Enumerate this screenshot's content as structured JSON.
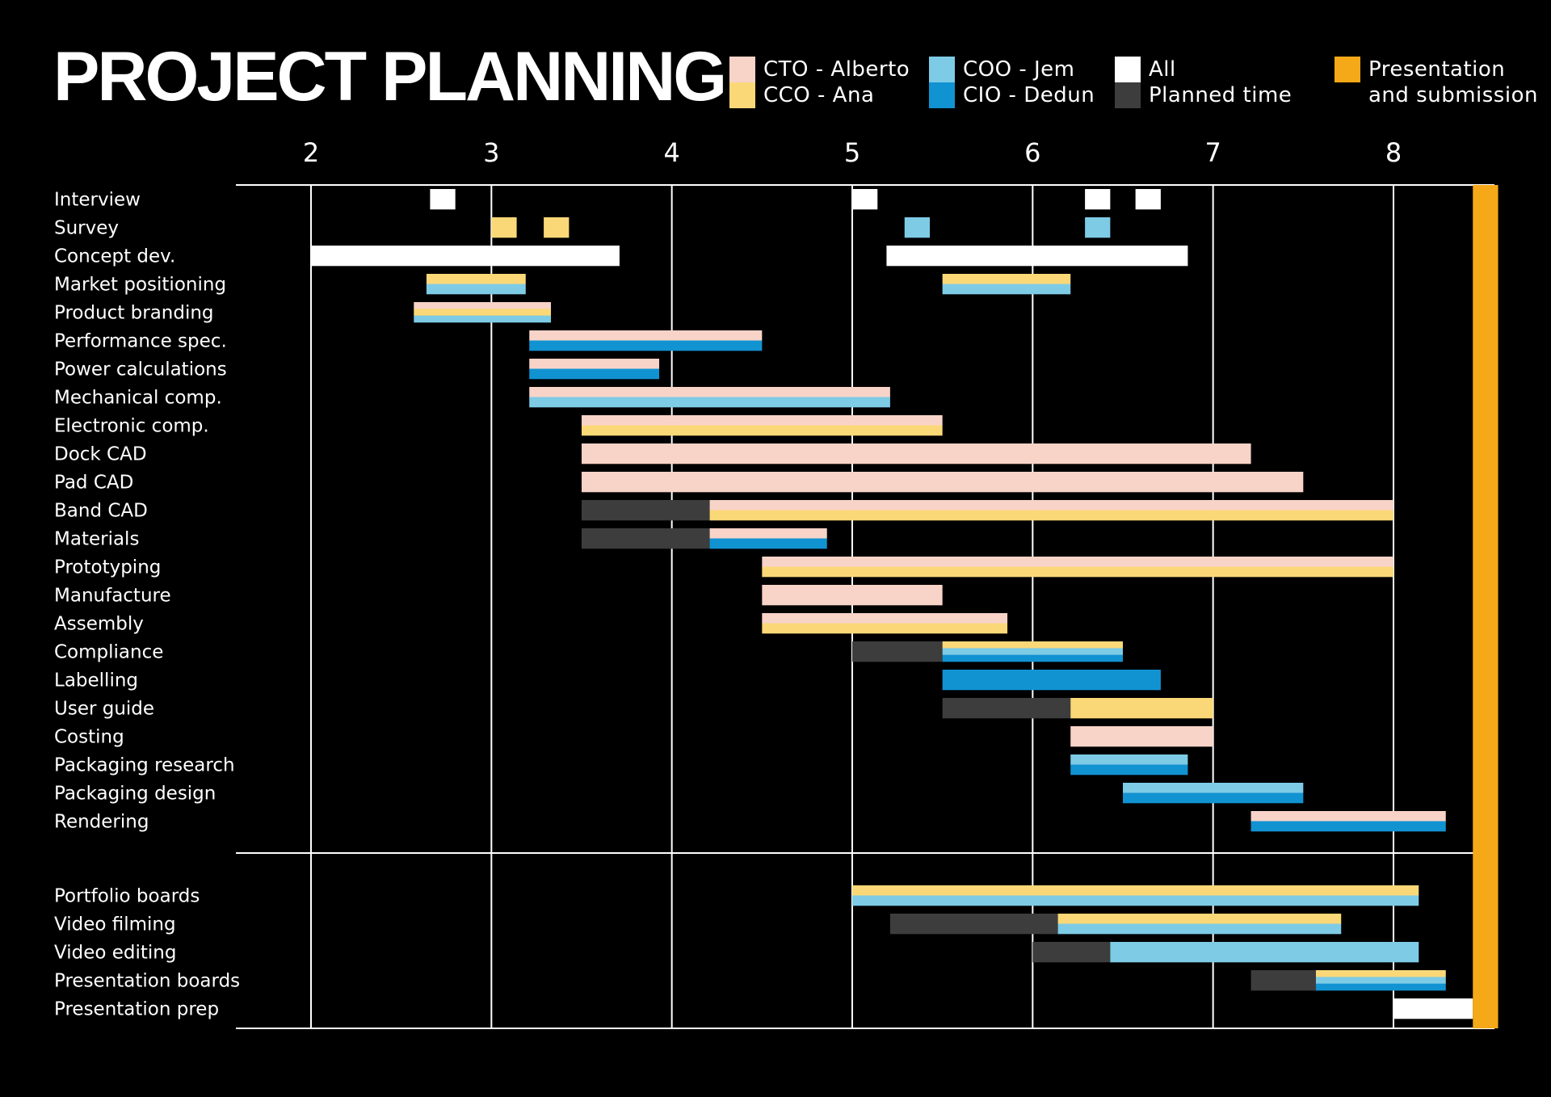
{
  "title": "PROJECT PLANNING",
  "legend": [
    {
      "key": "cto",
      "label": "CTO - Alberto",
      "color": "#F8D3C8"
    },
    {
      "key": "cco",
      "label": "CCO - Ana",
      "color": "#FBD877"
    },
    {
      "key": "coo",
      "label": "COO - Jem",
      "color": "#7ECBE6"
    },
    {
      "key": "cio",
      "label": "CIO - Dedun",
      "color": "#1193D2"
    },
    {
      "key": "all",
      "label": "All",
      "color": "#FFFFFF"
    },
    {
      "key": "planned",
      "label": "Planned time",
      "color": "#3D3D3D"
    },
    {
      "key": "presentation",
      "label": "Presentation\nand submission",
      "color": "#F5A918"
    }
  ],
  "chart_data": {
    "type": "gantt",
    "title": "PROJECT PLANNING",
    "x_ticks": [
      2,
      3,
      4,
      5,
      6,
      7,
      8
    ],
    "xlim": [
      1.58,
      8.6
    ],
    "grid": "vertical",
    "legend_position": "top",
    "presentation_band": [
      8.44,
      8.58
    ],
    "groups": [
      {
        "tasks": [
          {
            "label": "Interview",
            "bars": [
              {
                "start": 2.66,
                "end": 2.8,
                "colors": [
                  "all"
                ]
              },
              {
                "start": 5.0,
                "end": 5.14,
                "colors": [
                  "all"
                ]
              },
              {
                "start": 6.29,
                "end": 6.43,
                "colors": [
                  "all"
                ]
              },
              {
                "start": 6.57,
                "end": 6.71,
                "colors": [
                  "all"
                ]
              }
            ]
          },
          {
            "label": "Survey",
            "bars": [
              {
                "start": 3.0,
                "end": 3.14,
                "colors": [
                  "cco"
                ]
              },
              {
                "start": 3.29,
                "end": 3.43,
                "colors": [
                  "cco"
                ]
              },
              {
                "start": 5.29,
                "end": 5.43,
                "colors": [
                  "coo"
                ]
              },
              {
                "start": 6.29,
                "end": 6.43,
                "colors": [
                  "coo"
                ]
              }
            ]
          },
          {
            "label": "Concept dev.",
            "bars": [
              {
                "start": 2.0,
                "end": 3.71,
                "colors": [
                  "all"
                ]
              },
              {
                "start": 5.19,
                "end": 6.86,
                "colors": [
                  "all"
                ]
              }
            ]
          },
          {
            "label": "Market positioning",
            "bars": [
              {
                "start": 2.64,
                "end": 3.19,
                "colors": [
                  "cco",
                  "coo"
                ]
              },
              {
                "start": 5.5,
                "end": 6.21,
                "colors": [
                  "cco",
                  "coo"
                ]
              }
            ]
          },
          {
            "label": "Product branding",
            "bars": [
              {
                "start": 2.57,
                "end": 3.33,
                "colors": [
                  "cto",
                  "cco",
                  "coo"
                ]
              }
            ]
          },
          {
            "label": "Performance spec.",
            "bars": [
              {
                "start": 3.21,
                "end": 4.5,
                "colors": [
                  "cto",
                  "cio"
                ]
              }
            ]
          },
          {
            "label": "Power calculations",
            "bars": [
              {
                "start": 3.21,
                "end": 3.93,
                "colors": [
                  "cto",
                  "cio"
                ]
              }
            ]
          },
          {
            "label": "Mechanical comp.",
            "bars": [
              {
                "start": 3.21,
                "end": 5.21,
                "colors": [
                  "cto",
                  "coo"
                ]
              }
            ]
          },
          {
            "label": "Electronic comp.",
            "bars": [
              {
                "start": 3.5,
                "end": 5.5,
                "colors": [
                  "cto",
                  "cco"
                ]
              }
            ]
          },
          {
            "label": "Dock CAD",
            "bars": [
              {
                "start": 3.5,
                "end": 7.21,
                "colors": [
                  "cto"
                ]
              }
            ]
          },
          {
            "label": "Pad CAD",
            "bars": [
              {
                "start": 3.5,
                "end": 7.5,
                "colors": [
                  "cto"
                ]
              }
            ]
          },
          {
            "label": "Band CAD",
            "bars": [
              {
                "start": 3.5,
                "end": 4.21,
                "colors": [
                  "planned"
                ]
              },
              {
                "start": 4.21,
                "end": 8.0,
                "colors": [
                  "cto",
                  "cco"
                ]
              }
            ]
          },
          {
            "label": "Materials",
            "bars": [
              {
                "start": 3.5,
                "end": 4.21,
                "colors": [
                  "planned"
                ]
              },
              {
                "start": 4.21,
                "end": 4.86,
                "colors": [
                  "cto",
                  "cio"
                ]
              }
            ]
          },
          {
            "label": "Prototyping",
            "bars": [
              {
                "start": 4.5,
                "end": 8.0,
                "colors": [
                  "cto",
                  "cco"
                ]
              }
            ]
          },
          {
            "label": "Manufacture",
            "bars": [
              {
                "start": 4.5,
                "end": 5.5,
                "colors": [
                  "cto"
                ]
              }
            ]
          },
          {
            "label": "Assembly",
            "bars": [
              {
                "start": 4.5,
                "end": 5.86,
                "colors": [
                  "cto",
                  "cco"
                ]
              }
            ]
          },
          {
            "label": "Compliance",
            "bars": [
              {
                "start": 5.0,
                "end": 5.5,
                "colors": [
                  "planned"
                ]
              },
              {
                "start": 5.5,
                "end": 6.5,
                "colors": [
                  "cco",
                  "coo",
                  "cio"
                ]
              }
            ]
          },
          {
            "label": "Labelling",
            "bars": [
              {
                "start": 5.5,
                "end": 6.71,
                "colors": [
                  "cio"
                ]
              }
            ]
          },
          {
            "label": "User guide",
            "bars": [
              {
                "start": 5.5,
                "end": 6.21,
                "colors": [
                  "planned"
                ]
              },
              {
                "start": 6.21,
                "end": 7.0,
                "colors": [
                  "cco"
                ]
              }
            ]
          },
          {
            "label": "Costing",
            "bars": [
              {
                "start": 6.21,
                "end": 7.0,
                "colors": [
                  "cto"
                ]
              }
            ]
          },
          {
            "label": "Packaging research",
            "bars": [
              {
                "start": 6.21,
                "end": 6.86,
                "colors": [
                  "coo",
                  "cio"
                ]
              }
            ]
          },
          {
            "label": "Packaging design",
            "bars": [
              {
                "start": 6.5,
                "end": 7.5,
                "colors": [
                  "coo",
                  "cio"
                ]
              }
            ]
          },
          {
            "label": "Rendering",
            "bars": [
              {
                "start": 7.21,
                "end": 8.29,
                "colors": [
                  "cto",
                  "cio"
                ]
              }
            ]
          }
        ]
      },
      {
        "tasks": [
          {
            "label": "Portfolio boards",
            "bars": [
              {
                "start": 5.0,
                "end": 8.14,
                "colors": [
                  "cco",
                  "coo"
                ]
              }
            ]
          },
          {
            "label": "Video filming",
            "bars": [
              {
                "start": 5.21,
                "end": 6.14,
                "colors": [
                  "planned"
                ]
              },
              {
                "start": 6.14,
                "end": 7.71,
                "colors": [
                  "cco",
                  "coo"
                ]
              }
            ]
          },
          {
            "label": "Video editing",
            "bars": [
              {
                "start": 6.0,
                "end": 6.43,
                "colors": [
                  "planned"
                ]
              },
              {
                "start": 6.43,
                "end": 8.14,
                "colors": [
                  "coo"
                ]
              }
            ]
          },
          {
            "label": "Presentation boards",
            "bars": [
              {
                "start": 7.21,
                "end": 7.57,
                "colors": [
                  "planned"
                ]
              },
              {
                "start": 7.57,
                "end": 8.29,
                "colors": [
                  "cco",
                  "coo",
                  "cio"
                ]
              }
            ]
          },
          {
            "label": "Presentation prep",
            "bars": [
              {
                "start": 8.0,
                "end": 8.44,
                "colors": [
                  "all"
                ]
              }
            ]
          }
        ]
      }
    ]
  }
}
